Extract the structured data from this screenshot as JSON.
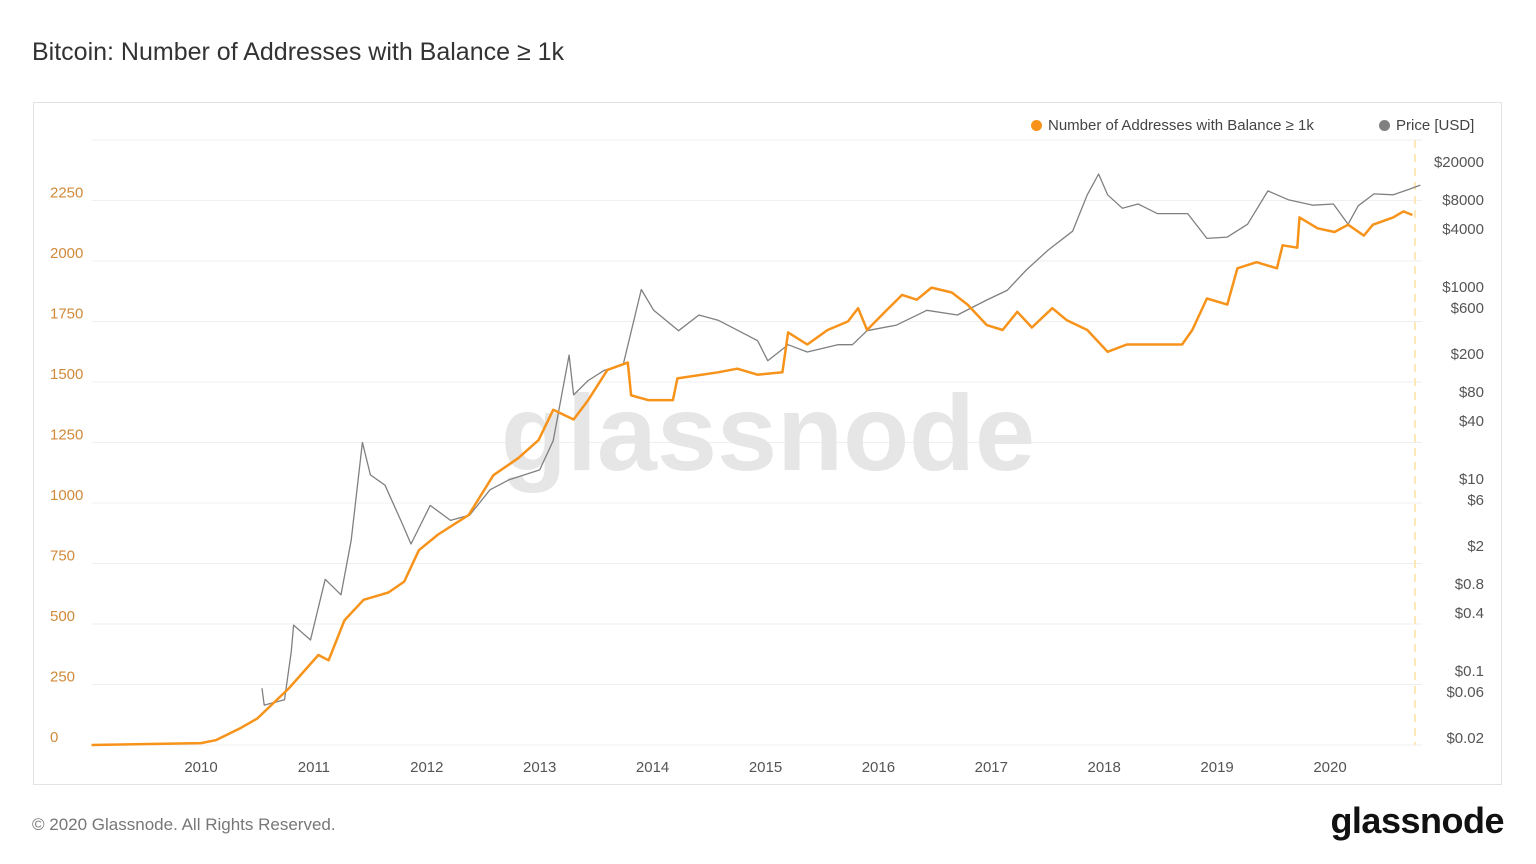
{
  "title": "Bitcoin: Number of Addresses with Balance ≥ 1k",
  "footer": "© 2020 Glassnode. All Rights Reserved.",
  "logo": "glassnode",
  "watermark": "glassnode",
  "colors": {
    "addresses": "#f7931a",
    "price": "#808080",
    "left_axis": "#d08a3a",
    "current_marker": "#fde8b8"
  },
  "chart_data": {
    "type": "line",
    "title": "Bitcoin: Number of Addresses with Balance ≥ 1k",
    "legend": {
      "placement": "top-right",
      "entries": [
        "Number of Addresses with Balance ≥ 1k",
        "Price [USD]"
      ]
    },
    "grid": true,
    "x": {
      "ticks": [
        "2010",
        "2011",
        "2012",
        "2013",
        "2014",
        "2015",
        "2016",
        "2017",
        "2018",
        "2019",
        "2020"
      ],
      "range": [
        2009.03,
        2020.8
      ]
    },
    "y_left": {
      "ticks": [
        "0",
        "250",
        "500",
        "750",
        "1000",
        "1250",
        "1500",
        "1750",
        "2000",
        "2250"
      ],
      "range": [
        0,
        2500
      ]
    },
    "y_right": {
      "scale": "log",
      "ticks": [
        "$20000",
        "$8000",
        "$4000",
        "$1000",
        "$600",
        "$200",
        "$80",
        "$40",
        "$10",
        "$6",
        "$2",
        "$0.8",
        "$0.4",
        "$0.1",
        "$0.06",
        "$0.02"
      ],
      "tick_values": [
        20000,
        8000,
        4000,
        1000,
        600,
        200,
        80,
        40,
        10,
        6,
        2,
        0.8,
        0.4,
        0.1,
        0.06,
        0.02
      ],
      "range": [
        0.02,
        20000
      ]
    },
    "series": [
      {
        "name": "Number of Addresses with Balance ≥ 1k",
        "axis": "left",
        "points": [
          [
            2009.03,
            0
          ],
          [
            2010.0,
            8
          ],
          [
            2010.13,
            20
          ],
          [
            2010.35,
            70
          ],
          [
            2010.5,
            110
          ],
          [
            2010.78,
            235
          ],
          [
            2011.04,
            372
          ],
          [
            2011.13,
            350
          ],
          [
            2011.27,
            515
          ],
          [
            2011.44,
            600
          ],
          [
            2011.66,
            630
          ],
          [
            2011.8,
            675
          ],
          [
            2011.93,
            805
          ],
          [
            2012.1,
            870
          ],
          [
            2012.37,
            950
          ],
          [
            2012.59,
            1115
          ],
          [
            2012.81,
            1185
          ],
          [
            2012.99,
            1260
          ],
          [
            2013.12,
            1385
          ],
          [
            2013.3,
            1345
          ],
          [
            2013.43,
            1425
          ],
          [
            2013.6,
            1550
          ],
          [
            2013.78,
            1580
          ],
          [
            2013.81,
            1445
          ],
          [
            2013.96,
            1425
          ],
          [
            2014.18,
            1425
          ],
          [
            2014.22,
            1515
          ],
          [
            2014.58,
            1540
          ],
          [
            2014.75,
            1555
          ],
          [
            2014.93,
            1530
          ],
          [
            2015.15,
            1540
          ],
          [
            2015.2,
            1705
          ],
          [
            2015.37,
            1655
          ],
          [
            2015.55,
            1715
          ],
          [
            2015.73,
            1750
          ],
          [
            2015.82,
            1805
          ],
          [
            2015.9,
            1715
          ],
          [
            2016.08,
            1800
          ],
          [
            2016.21,
            1860
          ],
          [
            2016.34,
            1840
          ],
          [
            2016.47,
            1890
          ],
          [
            2016.65,
            1870
          ],
          [
            2016.79,
            1820
          ],
          [
            2016.96,
            1735
          ],
          [
            2017.1,
            1715
          ],
          [
            2017.23,
            1790
          ],
          [
            2017.36,
            1725
          ],
          [
            2017.54,
            1805
          ],
          [
            2017.67,
            1755
          ],
          [
            2017.85,
            1715
          ],
          [
            2018.03,
            1625
          ],
          [
            2018.2,
            1655
          ],
          [
            2018.42,
            1655
          ],
          [
            2018.69,
            1655
          ],
          [
            2018.78,
            1715
          ],
          [
            2018.91,
            1845
          ],
          [
            2019.09,
            1820
          ],
          [
            2019.18,
            1970
          ],
          [
            2019.35,
            1995
          ],
          [
            2019.53,
            1970
          ],
          [
            2019.58,
            2065
          ],
          [
            2019.71,
            2055
          ],
          [
            2019.73,
            2180
          ],
          [
            2019.89,
            2135
          ],
          [
            2020.04,
            2120
          ],
          [
            2020.16,
            2150
          ],
          [
            2020.3,
            2105
          ],
          [
            2020.38,
            2150
          ],
          [
            2020.56,
            2180
          ],
          [
            2020.65,
            2205
          ],
          [
            2020.73,
            2190
          ]
        ]
      },
      {
        "name": "Price [USD]",
        "axis": "right",
        "points": [
          [
            2010.54,
            0.066
          ],
          [
            2010.56,
            0.044
          ],
          [
            2010.74,
            0.05
          ],
          [
            2010.8,
            0.16
          ],
          [
            2010.82,
            0.3
          ],
          [
            2010.97,
            0.21
          ],
          [
            2011.1,
            0.9
          ],
          [
            2011.24,
            0.62
          ],
          [
            2011.33,
            2.3
          ],
          [
            2011.43,
            24
          ],
          [
            2011.5,
            11
          ],
          [
            2011.63,
            8.6
          ],
          [
            2011.77,
            3.7
          ],
          [
            2011.86,
            2.1
          ],
          [
            2012.03,
            5.3
          ],
          [
            2012.21,
            3.7
          ],
          [
            2012.38,
            4.2
          ],
          [
            2012.56,
            7.7
          ],
          [
            2012.73,
            9.8
          ],
          [
            2013.0,
            12.4
          ],
          [
            2013.12,
            25
          ],
          [
            2013.26,
            195
          ],
          [
            2013.3,
            75
          ],
          [
            2013.43,
            106
          ],
          [
            2013.57,
            135
          ],
          [
            2013.74,
            155
          ],
          [
            2013.9,
            940
          ],
          [
            2014.01,
            570
          ],
          [
            2014.23,
            350
          ],
          [
            2014.41,
            510
          ],
          [
            2014.58,
            450
          ],
          [
            2014.76,
            350
          ],
          [
            2014.93,
            275
          ],
          [
            2015.02,
            170
          ],
          [
            2015.2,
            250
          ],
          [
            2015.37,
            210
          ],
          [
            2015.64,
            250
          ],
          [
            2015.77,
            250
          ],
          [
            2015.9,
            350
          ],
          [
            2016.16,
            400
          ],
          [
            2016.43,
            570
          ],
          [
            2016.7,
            510
          ],
          [
            2016.96,
            730
          ],
          [
            2017.14,
            920
          ],
          [
            2017.31,
            1500
          ],
          [
            2017.5,
            2400
          ],
          [
            2017.72,
            3800
          ],
          [
            2017.85,
            9100
          ],
          [
            2017.95,
            15000
          ],
          [
            2018.03,
            9100
          ],
          [
            2018.16,
            6600
          ],
          [
            2018.3,
            7300
          ],
          [
            2018.47,
            5800
          ],
          [
            2018.74,
            5800
          ],
          [
            2018.91,
            3200
          ],
          [
            2019.09,
            3300
          ],
          [
            2019.27,
            4500
          ],
          [
            2019.45,
            10000
          ],
          [
            2019.63,
            8100
          ],
          [
            2019.85,
            7100
          ],
          [
            2020.03,
            7300
          ],
          [
            2020.16,
            4500
          ],
          [
            2020.25,
            7000
          ],
          [
            2020.39,
            9300
          ],
          [
            2020.56,
            9100
          ],
          [
            2020.69,
            10300
          ],
          [
            2020.8,
            11500
          ]
        ]
      }
    ]
  }
}
